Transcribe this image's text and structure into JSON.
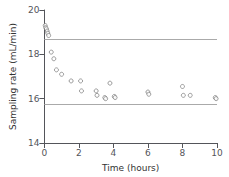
{
  "chart_data": {
    "type": "scatter",
    "xlabel": "Time (hours)",
    "ylabel": "Sampling rate (mL/min)",
    "x": [
      0.05,
      0.08,
      0.12,
      0.16,
      0.2,
      0.25,
      0.4,
      0.55,
      0.7,
      1.0,
      1.55,
      2.1,
      2.15,
      3.0,
      3.05,
      3.5,
      3.55,
      3.8,
      4.05,
      4.1,
      6.0,
      6.05,
      8.0,
      8.05,
      8.45,
      9.9,
      9.95
    ],
    "values": [
      19.3,
      19.2,
      19.15,
      19.05,
      18.95,
      18.85,
      18.1,
      17.8,
      17.3,
      17.1,
      16.8,
      16.8,
      16.35,
      16.35,
      16.15,
      16.05,
      16.0,
      16.7,
      16.1,
      16.05,
      16.3,
      16.2,
      16.55,
      16.15,
      16.15,
      16.05,
      16.0
    ],
    "hlines": [
      18.7,
      15.75
    ],
    "xlim": [
      0,
      10
    ],
    "ylim": [
      14,
      20
    ],
    "xticks": [
      0,
      2,
      4,
      6,
      8,
      10
    ],
    "yticks": [
      14,
      16,
      18,
      20
    ],
    "marker": "circle",
    "grid": false
  }
}
